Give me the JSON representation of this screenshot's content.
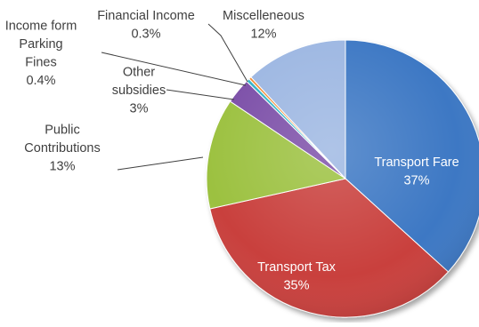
{
  "chart_data": {
    "type": "pie",
    "title": "",
    "slices": [
      {
        "label": "Transport Fare",
        "value": 37,
        "value_label": "37%",
        "color": "#3c78c4",
        "label_color": "#ffffff"
      },
      {
        "label": "Transport Tax",
        "value": 35,
        "value_label": "35%",
        "color": "#c9403d",
        "label_color": "#ffffff"
      },
      {
        "label": "Public Contributions",
        "value": 13,
        "value_label": "13%",
        "color": "#9cc13f",
        "label_color": "#404040"
      },
      {
        "label": "Other subsidies",
        "value": 3,
        "value_label": "3%",
        "color": "#7b4fa8",
        "label_color": "#404040"
      },
      {
        "label": "Income form Parking Fines",
        "value": 0.4,
        "value_label": "0.4%",
        "color": "#33b2c6",
        "label_color": "#404040"
      },
      {
        "label": "Financial Income",
        "value": 0.3,
        "value_label": "0.3%",
        "color": "#f08a32",
        "label_color": "#404040"
      },
      {
        "label": "Miscelleneous",
        "value": 12,
        "value_label": "12%",
        "color": "#9db7e2",
        "label_color": "#404040"
      }
    ],
    "legend": "none",
    "data_labels": "outside-with-leader-lines"
  }
}
